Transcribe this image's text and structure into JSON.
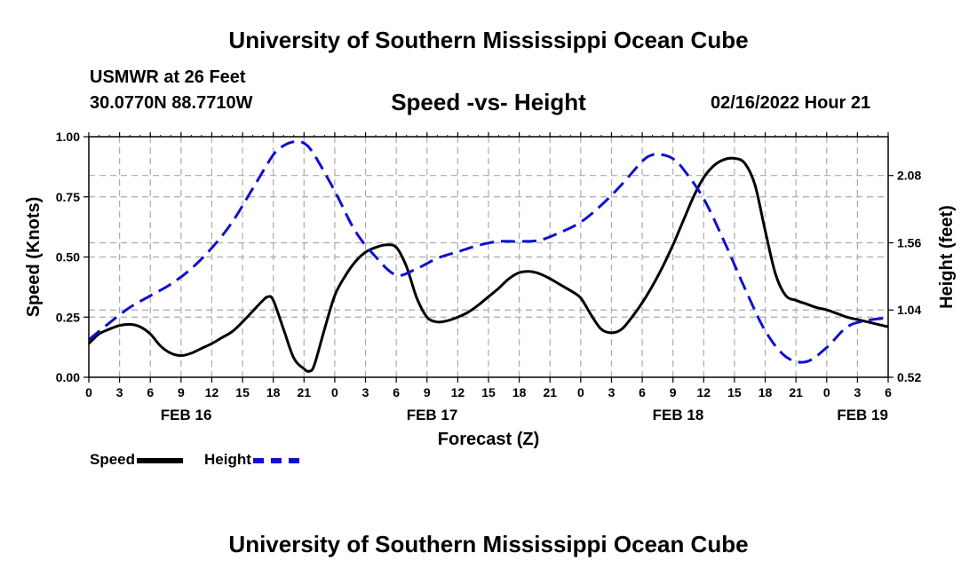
{
  "page": {
    "title_top": "University of Southern Mississippi Ocean Cube",
    "title_bottom": "University of Southern Mississippi Ocean Cube",
    "station": "USMWR at 26 Feet",
    "coords": "30.0770N  88.7710W",
    "subtitle": "Speed -vs- Height",
    "date": "02/16/2022 Hour 21"
  },
  "legend": {
    "speed_label": "Speed",
    "height_label": "Height"
  },
  "colors": {
    "speed": "#000000",
    "height": "#1010d0",
    "grid": "#aaaaaa"
  },
  "chart_data": {
    "type": "line",
    "title": "Speed -vs- Height",
    "xlabel": "Forecast (Z)",
    "ylabel_left": "Speed (Knots)",
    "ylabel_right": "Height (feet)",
    "x_range_hours": [
      0,
      78
    ],
    "x_tick_labels": [
      "0",
      "3",
      "6",
      "9",
      "12",
      "15",
      "18",
      "21",
      "0",
      "3",
      "6",
      "9",
      "12",
      "15",
      "18",
      "21",
      "0",
      "3",
      "6",
      "9",
      "12",
      "15",
      "18",
      "21",
      "0",
      "3",
      "6"
    ],
    "day_labels": [
      {
        "label": "FEB 16",
        "hour": 9.5
      },
      {
        "label": "FEB 17",
        "hour": 33.5
      },
      {
        "label": "FEB 18",
        "hour": 57.5
      },
      {
        "label": "FEB 19",
        "hour": 75.5
      }
    ],
    "y_left": {
      "range": [
        0,
        1.0
      ],
      "ticks": [
        0.0,
        0.25,
        0.5,
        0.75,
        1.0
      ],
      "tick_labels": [
        "0.00",
        "0.25",
        "0.50",
        "0.75",
        "1.00"
      ]
    },
    "y_right": {
      "range": [
        0.52,
        2.38
      ],
      "ticks": [
        0.52,
        1.04,
        1.56,
        2.08
      ],
      "tick_labels": [
        "0.52",
        "1.04",
        "1.56",
        "2.08"
      ]
    },
    "series": [
      {
        "name": "Speed",
        "axis": "left",
        "style": "solid",
        "hours": [
          0,
          1,
          2,
          3,
          4,
          5,
          6,
          7,
          8,
          9,
          10,
          11,
          12,
          13,
          14,
          15,
          16,
          17,
          17.5,
          18,
          19,
          20,
          21,
          21.5,
          22,
          23,
          24,
          25,
          26,
          27,
          28,
          29,
          30,
          31,
          32,
          33,
          34,
          35,
          36,
          37,
          38,
          39,
          40,
          41,
          42,
          43,
          44,
          45,
          46,
          47,
          48,
          49,
          50,
          51,
          52,
          53,
          54,
          55,
          56,
          57,
          58,
          59,
          60,
          61,
          62,
          63,
          64,
          65,
          66,
          67,
          68,
          69,
          70,
          71,
          72,
          73,
          74,
          75,
          76,
          77,
          78
        ],
        "values": [
          0.14,
          0.18,
          0.2,
          0.215,
          0.22,
          0.21,
          0.18,
          0.13,
          0.1,
          0.09,
          0.1,
          0.12,
          0.14,
          0.165,
          0.19,
          0.23,
          0.275,
          0.32,
          0.335,
          0.32,
          0.2,
          0.08,
          0.035,
          0.025,
          0.05,
          0.2,
          0.34,
          0.42,
          0.48,
          0.52,
          0.54,
          0.55,
          0.54,
          0.46,
          0.33,
          0.25,
          0.23,
          0.235,
          0.25,
          0.27,
          0.3,
          0.335,
          0.37,
          0.41,
          0.435,
          0.44,
          0.43,
          0.41,
          0.385,
          0.36,
          0.33,
          0.26,
          0.2,
          0.185,
          0.2,
          0.25,
          0.31,
          0.38,
          0.46,
          0.55,
          0.65,
          0.75,
          0.83,
          0.88,
          0.905,
          0.91,
          0.89,
          0.8,
          0.61,
          0.43,
          0.34,
          0.32,
          0.305,
          0.29,
          0.28,
          0.265,
          0.25,
          0.24,
          0.23,
          0.22,
          0.21
        ]
      },
      {
        "name": "Height",
        "axis": "right",
        "style": "dashed",
        "hours": [
          0,
          2,
          4,
          6,
          8,
          10,
          12,
          14,
          16,
          18,
          19,
          20,
          21,
          22,
          24,
          26,
          28,
          30,
          32,
          34,
          36,
          38,
          40,
          42,
          44,
          46,
          48,
          50,
          52,
          54,
          55,
          56,
          57,
          58,
          60,
          62,
          64,
          66,
          68,
          70,
          72,
          74,
          76,
          78
        ],
        "values": [
          0.81,
          0.94,
          1.06,
          1.15,
          1.24,
          1.36,
          1.52,
          1.72,
          1.98,
          2.24,
          2.31,
          2.34,
          2.33,
          2.24,
          1.96,
          1.65,
          1.45,
          1.31,
          1.36,
          1.44,
          1.49,
          1.54,
          1.57,
          1.57,
          1.58,
          1.64,
          1.72,
          1.85,
          2.01,
          2.19,
          2.24,
          2.24,
          2.21,
          2.13,
          1.9,
          1.57,
          1.21,
          0.88,
          0.68,
          0.64,
          0.75,
          0.91,
          0.96,
          0.98
        ]
      }
    ]
  }
}
